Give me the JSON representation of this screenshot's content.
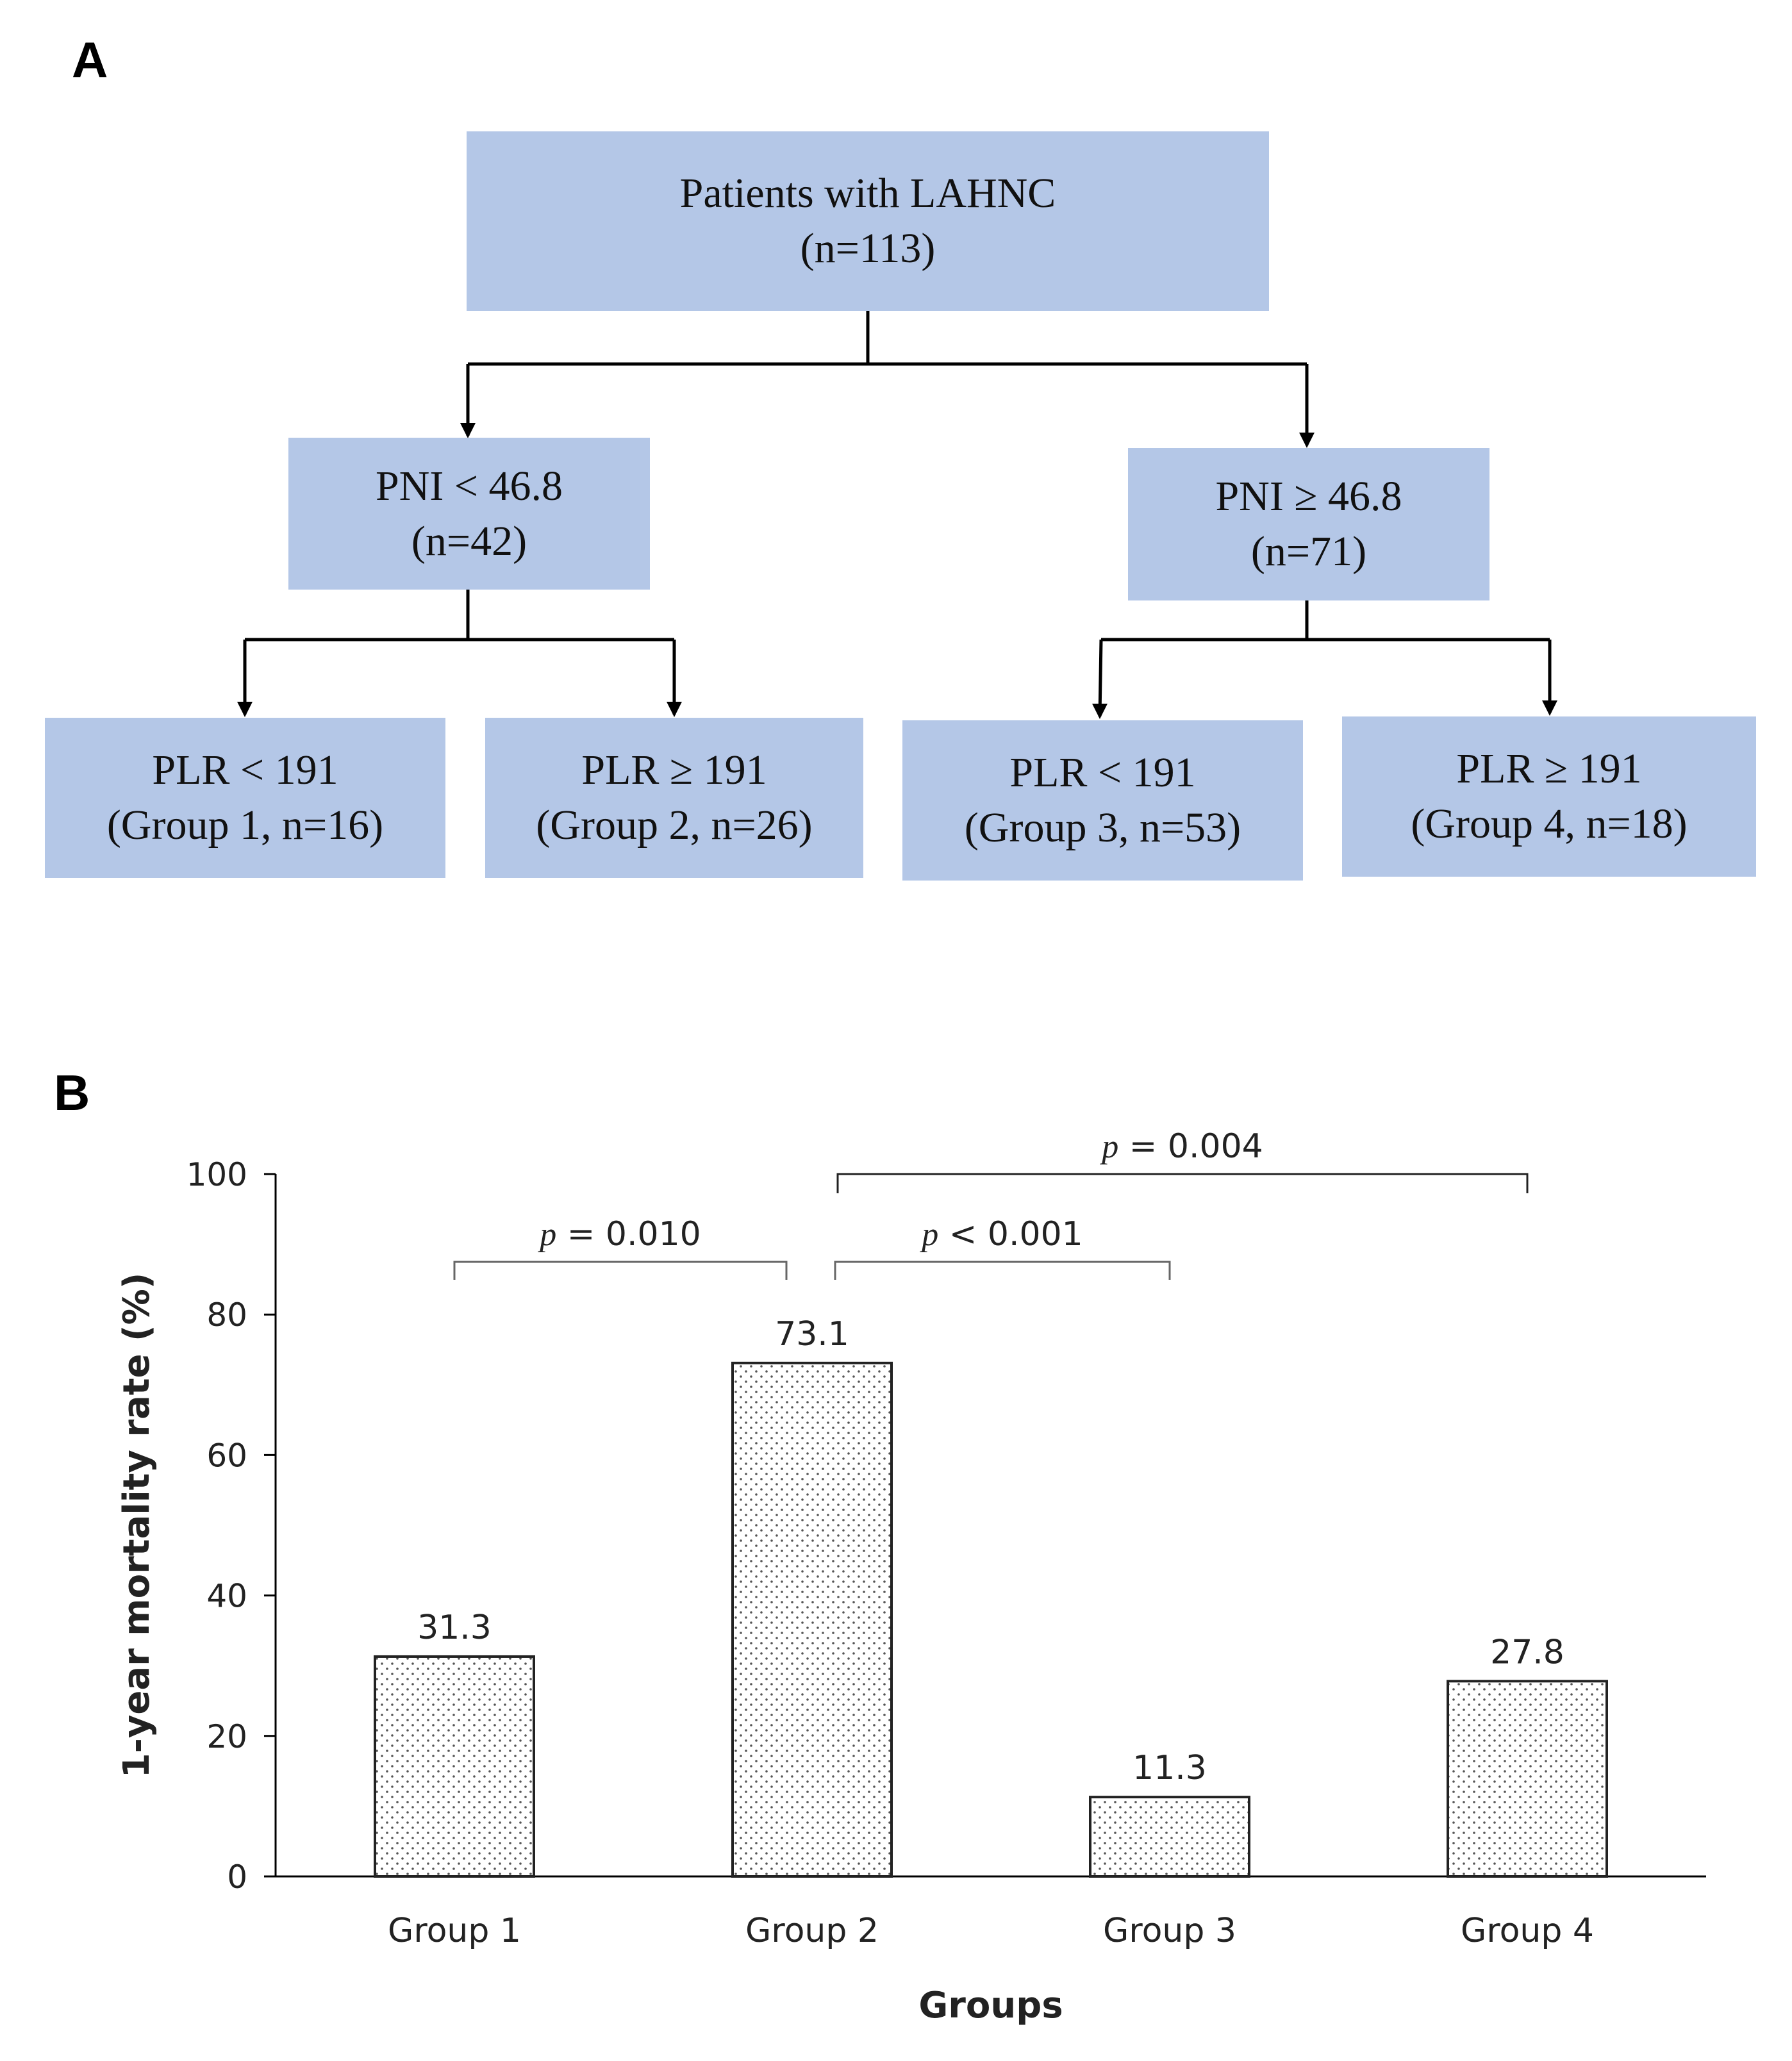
{
  "panel_a": {
    "label": "A",
    "root": {
      "line1": "Patients with LAHNC",
      "line2": "(n=113)"
    },
    "left": {
      "line1": "PNI < 46.8",
      "line2": "(n=42)"
    },
    "right": {
      "line1": "PNI ≥ 46.8",
      "line2": "(n=71)"
    },
    "groups": [
      {
        "line1": "PLR < 191",
        "line2": "(Group 1, n=16)"
      },
      {
        "line1": "PLR ≥ 191",
        "line2": "(Group 2, n=26)"
      },
      {
        "line1": "PLR < 191",
        "line2": "(Group 3, n=53)"
      },
      {
        "line1": "PLR ≥ 191",
        "line2": "(Group 4, n=18)"
      }
    ]
  },
  "panel_b": {
    "label": "B"
  },
  "chart_data": {
    "type": "bar",
    "categories": [
      "Group 1",
      "Group 2",
      "Group 3",
      "Group 4"
    ],
    "values": [
      31.3,
      73.1,
      11.3,
      27.8
    ],
    "value_labels": [
      "31.3",
      "73.1",
      "11.3",
      "27.8"
    ],
    "xlabel": "Groups",
    "ylabel": "1-year mortality rate (%)",
    "ylim": [
      0,
      100
    ],
    "yticks": [
      0,
      20,
      40,
      60,
      80,
      100
    ],
    "ytick_labels": [
      "0",
      "20",
      "40",
      "60",
      "80",
      "100"
    ],
    "bar_fill": "dotted",
    "annotations": [
      {
        "from": 0,
        "to": 1,
        "p_symbol": "p",
        "text": " = 0.010",
        "level": 1
      },
      {
        "from": 1,
        "to": 2,
        "p_symbol": "p",
        "text": " < 0.001",
        "level": 1
      },
      {
        "from": 1,
        "to": 3,
        "p_symbol": "p",
        "text": " = 0.004",
        "level": 2
      }
    ]
  }
}
